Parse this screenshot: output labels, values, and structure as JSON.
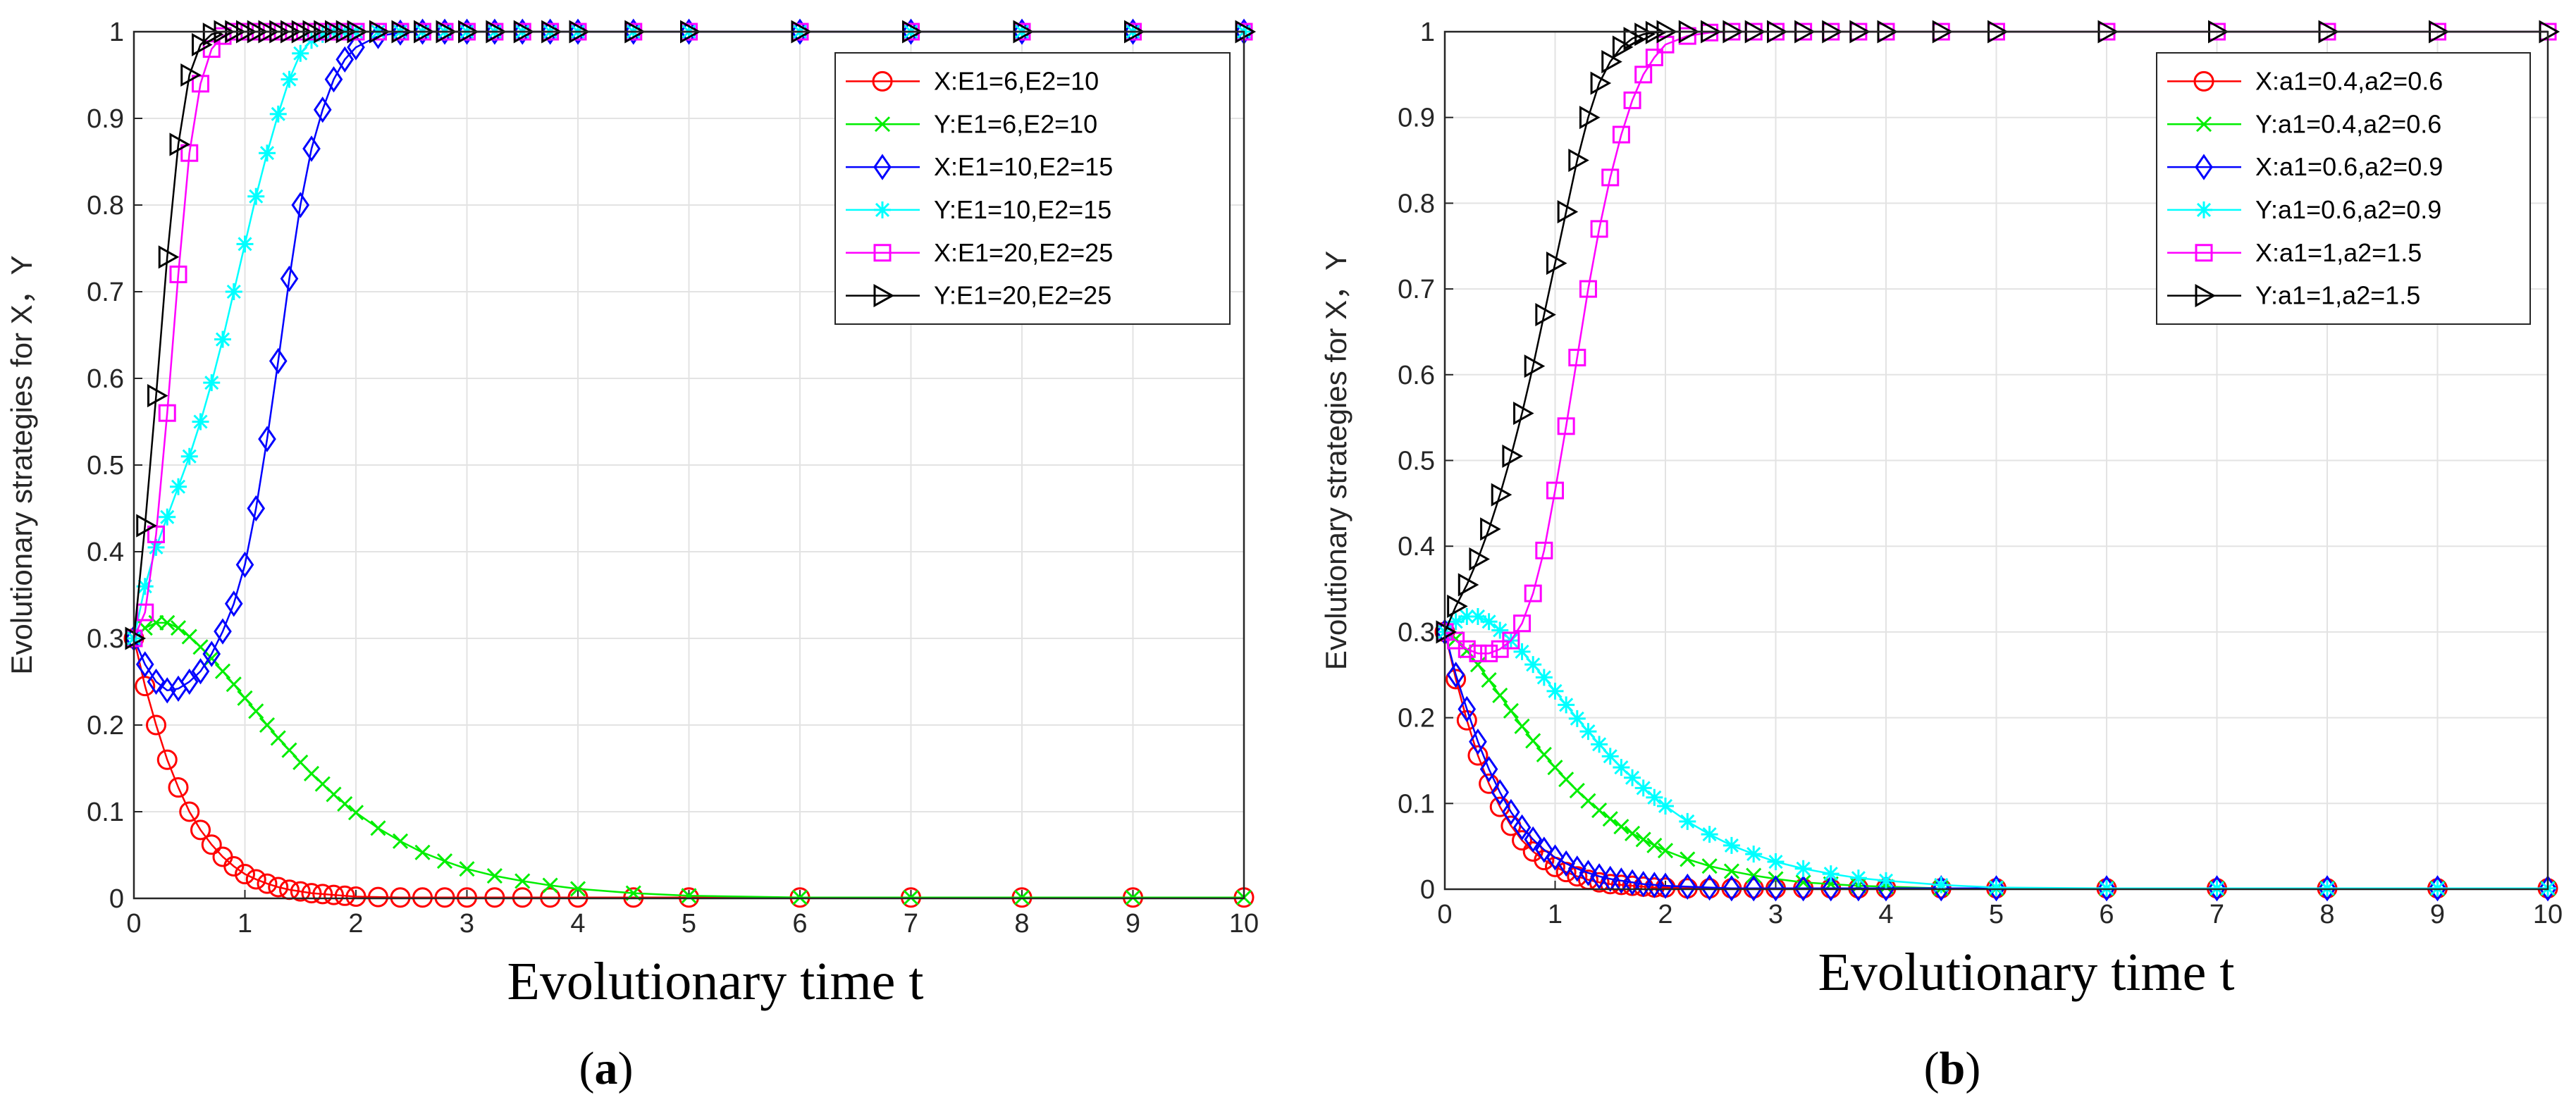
{
  "figure_labels": [
    {
      "open": "(",
      "letter": "a",
      "close": ")"
    },
    {
      "open": "(",
      "letter": "b",
      "close": ")"
    }
  ],
  "chart_data": [
    {
      "type": "line",
      "xlabel": "Evolutionary time t",
      "ylabel": "Evolutionary strategies for X，Y",
      "xlim": [
        0,
        10
      ],
      "ylim": [
        0,
        1
      ],
      "xticks": [
        "0",
        "1",
        "2",
        "3",
        "4",
        "5",
        "6",
        "7",
        "8",
        "9",
        "10"
      ],
      "yticks": [
        "0",
        "0.1",
        "0.2",
        "0.3",
        "0.4",
        "0.5",
        "0.6",
        "0.7",
        "0.8",
        "0.9",
        "1"
      ],
      "grid": true,
      "legend_position": "top-right",
      "x": [
        0,
        0.1,
        0.2,
        0.3,
        0.4,
        0.5,
        0.6,
        0.7,
        0.8,
        0.9,
        1.0,
        1.1,
        1.2,
        1.3,
        1.4,
        1.5,
        1.6,
        1.7,
        1.8,
        1.9,
        2.0,
        2.2,
        2.4,
        2.6,
        2.8,
        3.0,
        3.25,
        3.5,
        3.75,
        4.0,
        4.5,
        5.0,
        6.0,
        7.0,
        8.0,
        9.0,
        10.0
      ],
      "series": [
        {
          "name": "X:E1=6,E2=10",
          "color": "#ff0000",
          "marker": "circle",
          "values": [
            0.3,
            0.245,
            0.2,
            0.16,
            0.128,
            0.1,
            0.079,
            0.062,
            0.048,
            0.037,
            0.028,
            0.022,
            0.017,
            0.013,
            0.01,
            0.008,
            0.006,
            0.005,
            0.004,
            0.003,
            0.002,
            0.0015,
            0.001,
            0.001,
            0.001,
            0.001,
            0.001,
            0.001,
            0.001,
            0.001,
            0.001,
            0.001,
            0.001,
            0.001,
            0.001,
            0.001,
            0.001
          ]
        },
        {
          "name": "Y:E1=6,E2=10",
          "color": "#00ee00",
          "marker": "x",
          "values": [
            0.3,
            0.312,
            0.318,
            0.318,
            0.312,
            0.302,
            0.29,
            0.277,
            0.262,
            0.247,
            0.231,
            0.216,
            0.2,
            0.185,
            0.171,
            0.157,
            0.144,
            0.132,
            0.12,
            0.109,
            0.099,
            0.081,
            0.066,
            0.053,
            0.043,
            0.034,
            0.026,
            0.02,
            0.015,
            0.011,
            0.006,
            0.003,
            0.001,
            0.001,
            0.001,
            0.001,
            0.001
          ]
        },
        {
          "name": "X:E1=10,E2=15",
          "color": "#0000ff",
          "marker": "diamond",
          "values": [
            0.3,
            0.27,
            0.25,
            0.24,
            0.242,
            0.25,
            0.262,
            0.282,
            0.308,
            0.34,
            0.385,
            0.45,
            0.53,
            0.62,
            0.715,
            0.8,
            0.865,
            0.91,
            0.945,
            0.968,
            0.982,
            0.995,
            0.999,
            1,
            1,
            1,
            1,
            1,
            1,
            1,
            1,
            1,
            1,
            1,
            1,
            1,
            1
          ]
        },
        {
          "name": "Y:E1=10,E2=15",
          "color": "#00ffff",
          "marker": "asterisk",
          "values": [
            0.3,
            0.36,
            0.405,
            0.44,
            0.475,
            0.51,
            0.55,
            0.595,
            0.645,
            0.7,
            0.755,
            0.81,
            0.86,
            0.905,
            0.945,
            0.975,
            0.99,
            0.997,
            1,
            1,
            1,
            1,
            1,
            1,
            1,
            1,
            1,
            1,
            1,
            1,
            1,
            1,
            1,
            1,
            1,
            1,
            1
          ]
        },
        {
          "name": "X:E1=20,E2=25",
          "color": "#ff00ff",
          "marker": "square",
          "values": [
            0.3,
            0.33,
            0.42,
            0.56,
            0.72,
            0.86,
            0.94,
            0.98,
            0.995,
            1,
            1,
            1,
            1,
            1,
            1,
            1,
            1,
            1,
            1,
            1,
            1,
            1,
            1,
            1,
            1,
            1,
            1,
            1,
            1,
            1,
            1,
            1,
            1,
            1,
            1,
            1,
            1
          ]
        },
        {
          "name": "Y:E1=20,E2=25",
          "color": "#000000",
          "marker": "triangle-right",
          "values": [
            0.3,
            0.43,
            0.58,
            0.74,
            0.87,
            0.95,
            0.985,
            0.997,
            1,
            1,
            1,
            1,
            1,
            1,
            1,
            1,
            1,
            1,
            1,
            1,
            1,
            1,
            1,
            1,
            1,
            1,
            1,
            1,
            1,
            1,
            1,
            1,
            1,
            1,
            1,
            1,
            1
          ]
        }
      ]
    },
    {
      "type": "line",
      "xlabel": "Evolutionary time t",
      "ylabel": "Evolutionary strategies for X，Y",
      "xlim": [
        0,
        10
      ],
      "ylim": [
        0,
        1
      ],
      "xticks": [
        "0",
        "1",
        "2",
        "3",
        "4",
        "5",
        "6",
        "7",
        "8",
        "9",
        "10"
      ],
      "yticks": [
        "0",
        "0.1",
        "0.2",
        "0.3",
        "0.4",
        "0.5",
        "0.6",
        "0.7",
        "0.8",
        "0.9",
        "1"
      ],
      "grid": true,
      "legend_position": "top-right",
      "x": [
        0,
        0.1,
        0.2,
        0.3,
        0.4,
        0.5,
        0.6,
        0.7,
        0.8,
        0.9,
        1.0,
        1.1,
        1.2,
        1.3,
        1.4,
        1.5,
        1.6,
        1.7,
        1.8,
        1.9,
        2.0,
        2.2,
        2.4,
        2.6,
        2.8,
        3.0,
        3.25,
        3.5,
        3.75,
        4.0,
        4.5,
        5.0,
        6.0,
        7.0,
        8.0,
        9.0,
        10.0
      ],
      "series": [
        {
          "name": "X:a1=0.4,a2=0.6",
          "color": "#ff0000",
          "marker": "circle",
          "values": [
            0.3,
            0.245,
            0.197,
            0.156,
            0.123,
            0.096,
            0.074,
            0.057,
            0.044,
            0.034,
            0.026,
            0.02,
            0.015,
            0.011,
            0.008,
            0.006,
            0.005,
            0.004,
            0.003,
            0.002,
            0.002,
            0.001,
            0.001,
            0.001,
            0.001,
            0.001,
            0.001,
            0.001,
            0.001,
            0.001,
            0.001,
            0.001,
            0.001,
            0.001,
            0.001,
            0.001,
            0.001
          ]
        },
        {
          "name": "Y:a1=0.4,a2=0.6",
          "color": "#00ee00",
          "marker": "x",
          "values": [
            0.3,
            0.292,
            0.278,
            0.262,
            0.244,
            0.226,
            0.208,
            0.19,
            0.173,
            0.157,
            0.142,
            0.128,
            0.115,
            0.103,
            0.092,
            0.082,
            0.073,
            0.065,
            0.058,
            0.051,
            0.045,
            0.035,
            0.027,
            0.021,
            0.016,
            0.012,
            0.008,
            0.006,
            0.004,
            0.003,
            0.001,
            0.001,
            0.001,
            0.001,
            0.001,
            0.001,
            0.001
          ]
        },
        {
          "name": "X:a1=0.6,a2=0.9",
          "color": "#0000ff",
          "marker": "diamond",
          "values": [
            0.3,
            0.25,
            0.21,
            0.172,
            0.14,
            0.113,
            0.09,
            0.072,
            0.058,
            0.046,
            0.037,
            0.03,
            0.024,
            0.019,
            0.015,
            0.012,
            0.01,
            0.008,
            0.006,
            0.005,
            0.004,
            0.003,
            0.002,
            0.001,
            0.001,
            0.001,
            0.001,
            0.001,
            0.001,
            0.001,
            0.001,
            0.001,
            0.001,
            0.001,
            0.001,
            0.001,
            0.001
          ]
        },
        {
          "name": "Y:a1=0.6,a2=0.9",
          "color": "#00ffff",
          "marker": "asterisk",
          "values": [
            0.3,
            0.312,
            0.318,
            0.318,
            0.312,
            0.302,
            0.29,
            0.277,
            0.262,
            0.247,
            0.231,
            0.215,
            0.199,
            0.184,
            0.169,
            0.155,
            0.142,
            0.13,
            0.118,
            0.107,
            0.097,
            0.079,
            0.064,
            0.051,
            0.041,
            0.032,
            0.024,
            0.018,
            0.013,
            0.01,
            0.005,
            0.002,
            0.001,
            0.001,
            0.001,
            0.001,
            0.001
          ]
        },
        {
          "name": "X:a1=1,a2=1.5",
          "color": "#ff00ff",
          "marker": "square",
          "values": [
            0.3,
            0.29,
            0.28,
            0.275,
            0.275,
            0.28,
            0.29,
            0.31,
            0.345,
            0.395,
            0.465,
            0.54,
            0.62,
            0.7,
            0.77,
            0.83,
            0.88,
            0.92,
            0.95,
            0.97,
            0.985,
            0.995,
            0.999,
            1,
            1,
            1,
            1,
            1,
            1,
            1,
            1,
            1,
            1,
            1,
            1,
            1,
            1
          ]
        },
        {
          "name": "Y:a1=1,a2=1.5",
          "color": "#000000",
          "marker": "triangle-right",
          "values": [
            0.3,
            0.33,
            0.355,
            0.385,
            0.42,
            0.46,
            0.505,
            0.555,
            0.61,
            0.67,
            0.73,
            0.79,
            0.85,
            0.9,
            0.94,
            0.965,
            0.982,
            0.992,
            0.997,
            0.999,
            1,
            1,
            1,
            1,
            1,
            1,
            1,
            1,
            1,
            1,
            1,
            1,
            1,
            1,
            1,
            1,
            1
          ]
        }
      ]
    }
  ]
}
